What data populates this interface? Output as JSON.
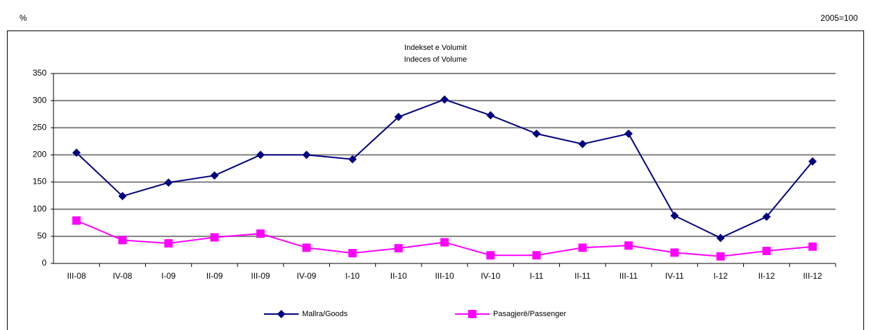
{
  "chart_data": {
    "type": "line",
    "unit": "%",
    "base": "2005=100",
    "title": "Indekset e Volumit",
    "subtitle": "Indeces of Volume",
    "categories": [
      "III-08",
      "IV-08",
      "I-09",
      "II-09",
      "III-09",
      "IV-09",
      "I-10",
      "II-10",
      "III-10",
      "IV-10",
      "I-11",
      "II-11",
      "III-11",
      "IV-11",
      "I-12",
      "II-12",
      "III-12"
    ],
    "series": [
      {
        "name": "Mallra/Goods",
        "color": "#000080",
        "marker": "diamond",
        "values": [
          204,
          124,
          149,
          162,
          200,
          200,
          192,
          270,
          302,
          273,
          239,
          220,
          239,
          88,
          47,
          86,
          188
        ]
      },
      {
        "name": "Pasagjerë/Passenger",
        "color": "#ff00ff",
        "marker": "square",
        "values": [
          79,
          43,
          37,
          48,
          55,
          29,
          19,
          28,
          39,
          15,
          15,
          29,
          33,
          20,
          13,
          23,
          31
        ]
      }
    ],
    "ylim": [
      0,
      350
    ],
    "yticks": [
      0,
      50,
      100,
      150,
      200,
      250,
      300,
      350
    ],
    "grid": true,
    "legend": "bottom"
  }
}
